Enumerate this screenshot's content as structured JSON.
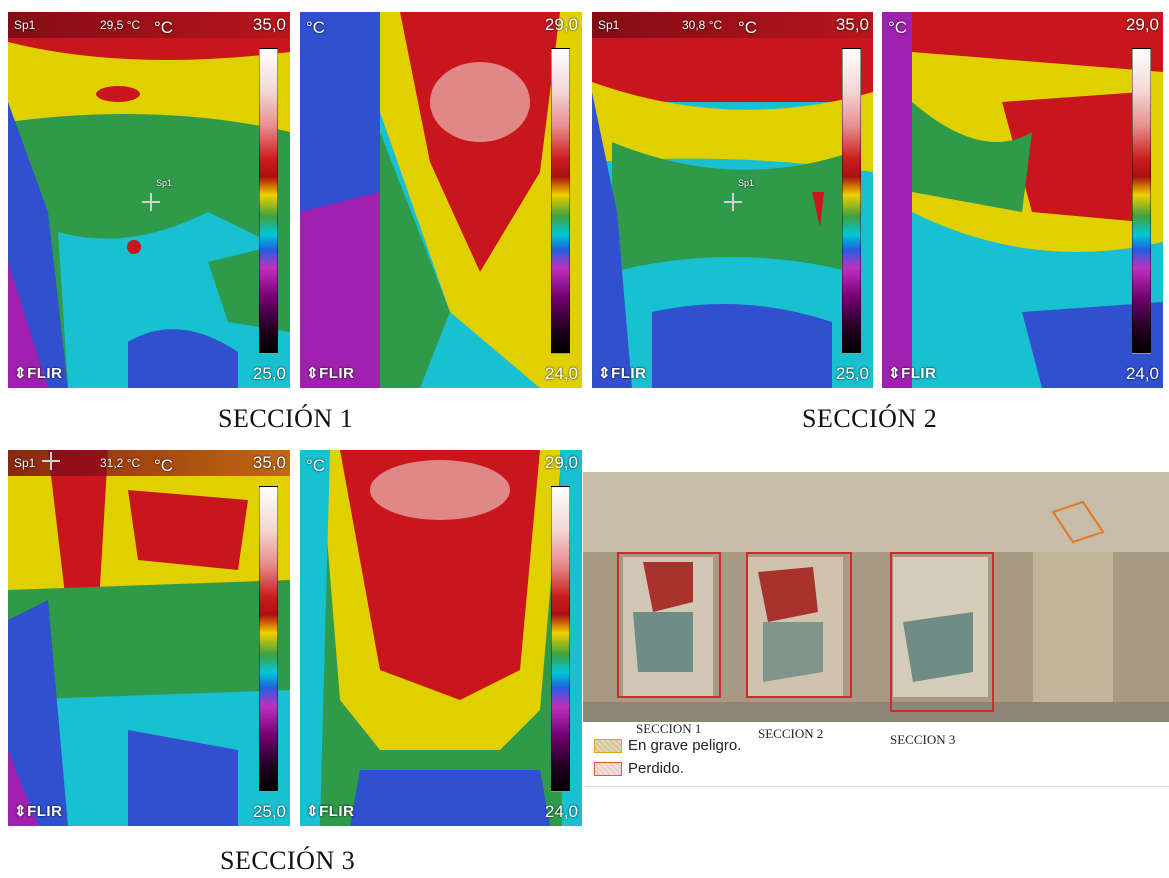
{
  "thermal_images": [
    {
      "id": "s1a",
      "sp1": "Sp1",
      "temp": "29,5 °C",
      "unit": "°C",
      "max": "35,0",
      "min": "25,0",
      "brand": "FLIR",
      "cross": "Sp1"
    },
    {
      "id": "s1b",
      "unit": "°C",
      "max": "29,0",
      "min": "24,0",
      "brand": "FLIR"
    },
    {
      "id": "s2a",
      "sp1": "Sp1",
      "temp": "30,8 °C",
      "unit": "°C",
      "max": "35,0",
      "min": "25,0",
      "brand": "FLIR",
      "cross": "Sp1"
    },
    {
      "id": "s2b",
      "unit": "°C",
      "max": "29,0",
      "min": "24,0",
      "brand": "FLIR"
    },
    {
      "id": "s3a",
      "sp1": "Sp1",
      "temp": "31,2 °C",
      "unit": "°C",
      "max": "35,0",
      "min": "25,0",
      "brand": "FLIR"
    },
    {
      "id": "s3b",
      "unit": "°C",
      "max": "29,0",
      "min": "24,0",
      "brand": "FLIR"
    }
  ],
  "captions": {
    "seccion1": "SECCIÓN 1",
    "seccion2": "SECCIÓN 2",
    "seccion3": "SECCIÓN 3"
  },
  "photo": {
    "labels": [
      "SECCION 1",
      "SECCION 2",
      "SECCION 3"
    ],
    "legend": [
      {
        "label": "En grave peligro.",
        "color": "#e6a020"
      },
      {
        "label": "Perdido.",
        "color": "#e05c30"
      }
    ]
  },
  "colors": {
    "hot": "#c8161c",
    "warm": "#e0d000",
    "mid": "#2f9a4a",
    "cool": "#18c0d0",
    "cold": "#3050d0",
    "cold2": "#a020b0",
    "box": "#d02a2a"
  }
}
